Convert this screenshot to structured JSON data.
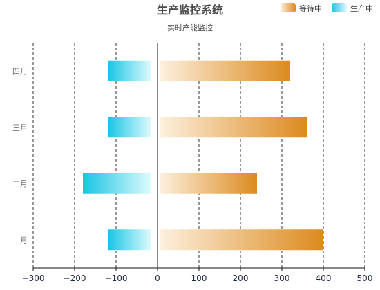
{
  "chart_data": {
    "type": "bar",
    "orientation": "horizontal",
    "title": "生产监控系统",
    "subtitle": "实时产能监控",
    "categories": [
      "一月",
      "二月",
      "三月",
      "四月"
    ],
    "series": [
      {
        "name": "等待中",
        "values": [
          400,
          240,
          360,
          320
        ],
        "gradient": [
          "#fdf0de",
          "#dc8a1e"
        ]
      },
      {
        "name": "生产中",
        "values": [
          -120,
          -180,
          -120,
          -120
        ],
        "gradient": [
          "#dffbfd",
          "#18c5e4"
        ]
      }
    ],
    "xlim": [
      -300,
      500
    ],
    "x_ticks": [
      -300,
      -200,
      -100,
      0,
      100,
      200,
      300,
      400,
      500
    ],
    "x_tick_labels": [
      "−300",
      "−200",
      "−100",
      "0",
      "100",
      "200",
      "300",
      "400",
      "500"
    ],
    "grid": "vertical dashed",
    "legend_position": "top-right",
    "xlabel": "",
    "ylabel": ""
  },
  "colors": {
    "axis": "#111111",
    "grid": "#333333",
    "title": "#4a4a4a",
    "subtitle": "#4a4a4a",
    "category_label": "#6b7280",
    "tick_label": "#1f2a44"
  }
}
